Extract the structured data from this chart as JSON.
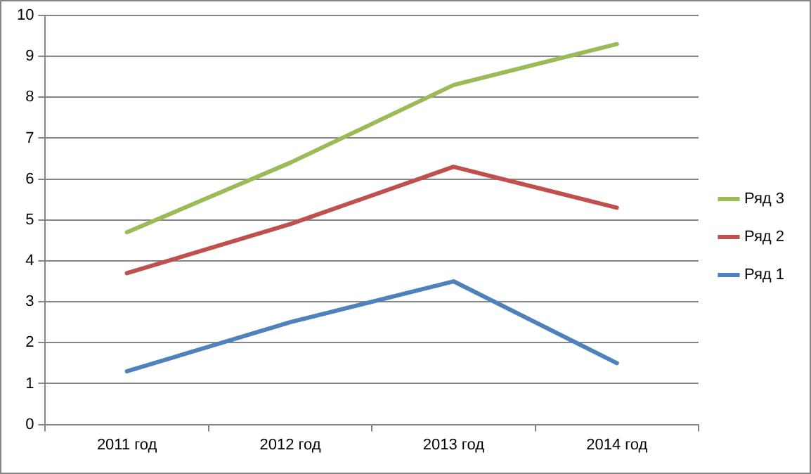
{
  "chart_data": {
    "type": "line",
    "categories": [
      "2011 год",
      "2012 год",
      "2013 год",
      "2014 год"
    ],
    "series": [
      {
        "name": "Ряд 1",
        "color": "#4f81bd",
        "values": [
          1.3,
          2.5,
          3.5,
          1.5
        ]
      },
      {
        "name": "Ряд 2",
        "color": "#c0504d",
        "values": [
          3.7,
          4.9,
          6.3,
          5.3
        ]
      },
      {
        "name": "Ряд 3",
        "color": "#9bbb59",
        "values": [
          4.7,
          6.4,
          8.3,
          9.3
        ]
      }
    ],
    "ylim": [
      0,
      10
    ],
    "yticks": [
      0,
      1,
      2,
      3,
      4,
      5,
      6,
      7,
      8,
      9,
      10
    ],
    "grid": "y",
    "legend": "right",
    "marker": "none",
    "line_style": "solid"
  }
}
